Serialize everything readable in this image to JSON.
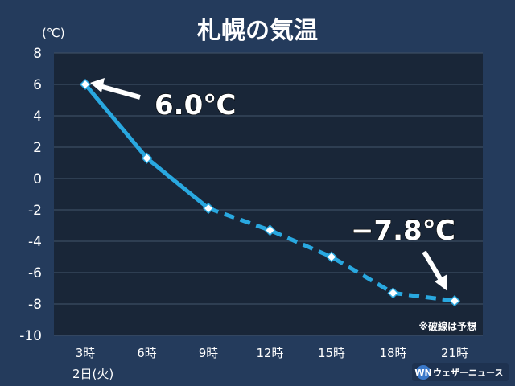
{
  "chart_data": {
    "type": "line",
    "title": "札幌の気温",
    "unit_label": "(℃)",
    "categories": [
      "3時",
      "6時",
      "9時",
      "12時",
      "15時",
      "18時",
      "21時"
    ],
    "date_label": "2日(火)",
    "values": [
      6.0,
      1.3,
      -1.9,
      -3.3,
      -5.0,
      -7.3,
      -7.8
    ],
    "observed_until_index": 2,
    "ylim": [
      -10,
      8
    ],
    "yticks": [
      8,
      6,
      4,
      2,
      0,
      -2,
      -4,
      -6,
      -8,
      -10
    ],
    "grid": true,
    "series_color": "#29a8e0",
    "annotations": [
      {
        "label": "6.0℃",
        "point_index": 0
      },
      {
        "label": "−7.8℃",
        "point_index": 6
      }
    ],
    "note": "※破線は予想"
  },
  "logo": {
    "mark": "WN",
    "text": "ウェザーニュース"
  },
  "colors": {
    "background": "#243b5c",
    "plot": "#192638",
    "grid": "#3c4c62"
  }
}
